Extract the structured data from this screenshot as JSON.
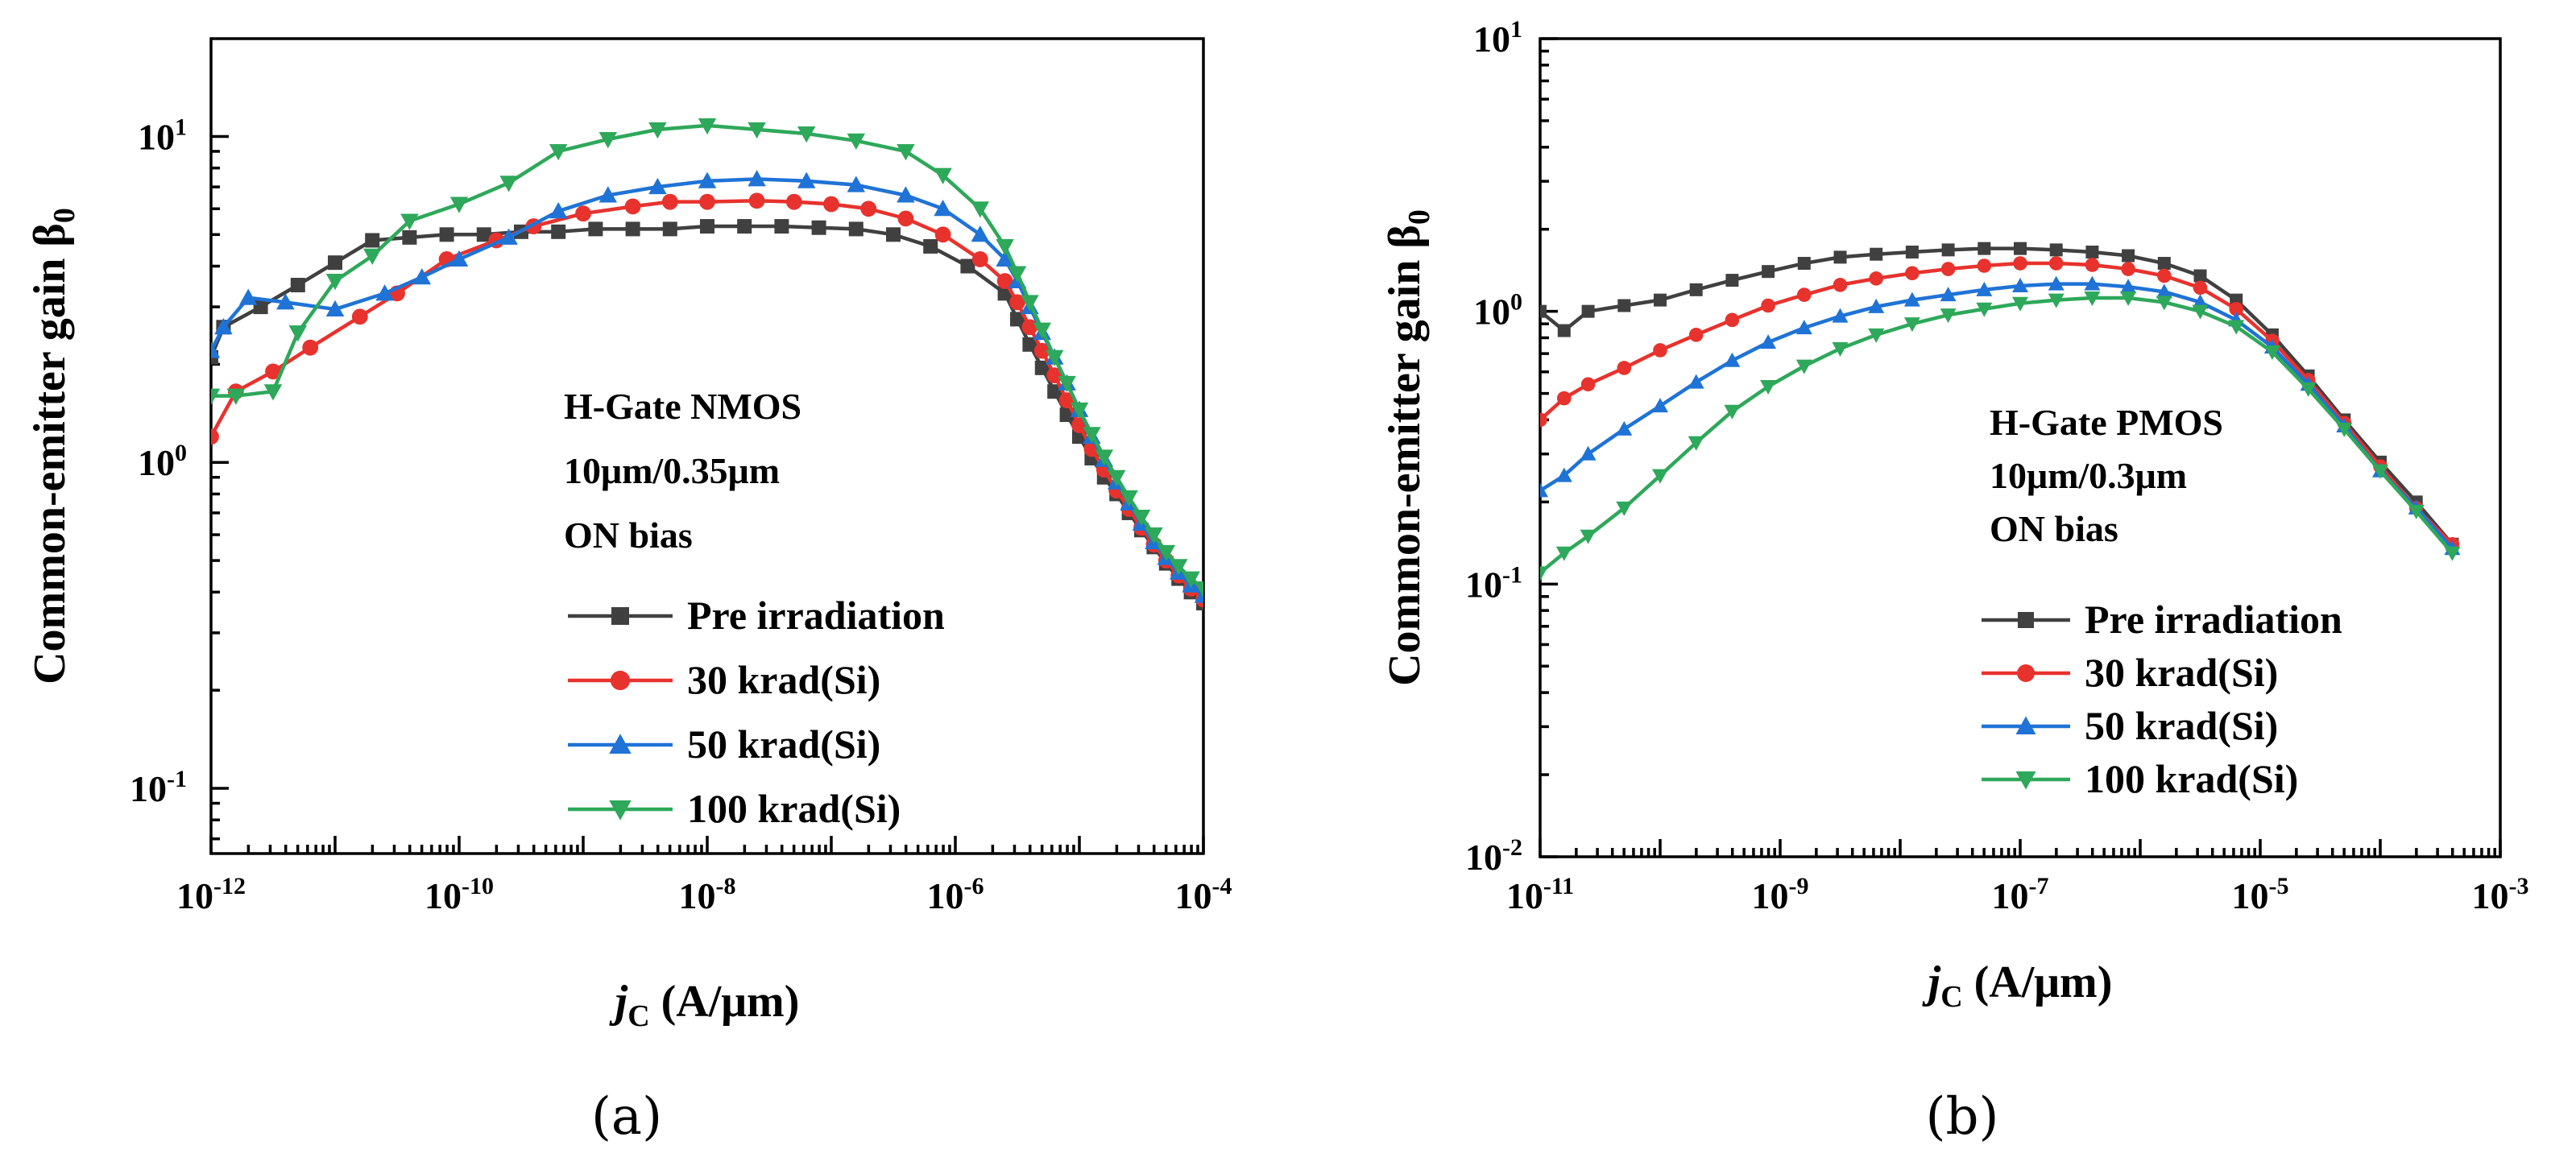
{
  "figure": {
    "panels": [
      {
        "label": "(a)",
        "annotation": [
          "H-Gate NMOS",
          "10μm/0.35μm",
          "ON bias"
        ],
        "legend": [
          "Pre irradiation",
          "30 krad(Si)",
          "50 krad(Si)",
          "100 krad(Si)"
        ]
      },
      {
        "label": "(b)",
        "annotation": [
          "H-Gate PMOS",
          "10μm/0.3μm",
          "ON bias"
        ],
        "legend": [
          "Pre irradiation",
          "30 krad(Si)",
          "50 krad(Si)",
          "100 krad(Si)"
        ]
      }
    ]
  },
  "chart_data": [
    {
      "type": "line",
      "title": "(a)",
      "xlabel": "jC (A/μm)",
      "xlabel_main": "j",
      "xlabel_sub": "C",
      "xlabel_unit": " (A/μm)",
      "ylabel": "Common-emitter gain β0",
      "ylabel_main": "Common-emitter gain β",
      "ylabel_sub": "0",
      "xscale": "log",
      "yscale": "log",
      "xlim_exp": [
        -12,
        -4
      ],
      "ylim_exp": [
        -1.2,
        1.3
      ],
      "xticks": [
        {
          "base": "10",
          "exp": "-12",
          "e": -12
        },
        {
          "base": "10",
          "exp": "-10",
          "e": -10
        },
        {
          "base": "10",
          "exp": "-8",
          "e": -8
        },
        {
          "base": "10",
          "exp": "-6",
          "e": -6
        },
        {
          "base": "10",
          "exp": "-4",
          "e": -4
        }
      ],
      "yticks": [
        {
          "base": "10",
          "exp": "-1",
          "e": -1
        },
        {
          "base": "10",
          "exp": "0",
          "e": 0
        },
        {
          "base": "10",
          "exp": "1",
          "e": 1
        }
      ],
      "legend_position": "lower-right",
      "series": [
        {
          "name": "Pre irradiation",
          "color": "#404040",
          "marker": "square",
          "x_exp": [
            -12,
            -11.9,
            -11.6,
            -11.3,
            -11.0,
            -10.7,
            -10.4,
            -10.1,
            -9.8,
            -9.5,
            -9.2,
            -8.9,
            -8.6,
            -8.3,
            -8.0,
            -7.7,
            -7.4,
            -7.1,
            -6.8,
            -6.5,
            -6.2,
            -5.9,
            -5.6,
            -5.5,
            -5.4,
            -5.3,
            -5.2,
            -5.1,
            -5.0,
            -4.9,
            -4.8,
            -4.7,
            -4.6,
            -4.5,
            -4.4,
            -4.3,
            -4.2,
            -4.1,
            -4.0
          ],
          "values": [
            2.1,
            2.6,
            3.0,
            3.5,
            4.1,
            4.8,
            4.9,
            5.0,
            5.0,
            5.1,
            5.1,
            5.2,
            5.2,
            5.2,
            5.3,
            5.3,
            5.3,
            5.25,
            5.2,
            5.0,
            4.6,
            4.0,
            3.3,
            2.75,
            2.3,
            1.95,
            1.65,
            1.4,
            1.2,
            1.03,
            0.9,
            0.8,
            0.7,
            0.62,
            0.55,
            0.49,
            0.44,
            0.4,
            0.37
          ]
        },
        {
          "name": "30 krad(Si)",
          "color": "#e8322d",
          "marker": "circle",
          "x_exp": [
            -12,
            -11.8,
            -11.5,
            -11.2,
            -10.8,
            -10.5,
            -10.1,
            -9.7,
            -9.4,
            -9.0,
            -8.6,
            -8.3,
            -8.0,
            -7.6,
            -7.3,
            -7.0,
            -6.7,
            -6.4,
            -6.1,
            -5.8,
            -5.6,
            -5.5,
            -5.4,
            -5.3,
            -5.2,
            -5.1,
            -5.0,
            -4.9,
            -4.8,
            -4.7,
            -4.6,
            -4.5,
            -4.4,
            -4.3,
            -4.2,
            -4.1,
            -4.0
          ],
          "values": [
            1.2,
            1.65,
            1.9,
            2.25,
            2.8,
            3.3,
            4.2,
            4.8,
            5.3,
            5.8,
            6.1,
            6.3,
            6.3,
            6.35,
            6.3,
            6.2,
            6.0,
            5.6,
            5.0,
            4.2,
            3.6,
            3.1,
            2.6,
            2.2,
            1.85,
            1.55,
            1.3,
            1.1,
            0.95,
            0.82,
            0.72,
            0.63,
            0.56,
            0.5,
            0.45,
            0.41,
            0.38
          ]
        },
        {
          "name": "50 krad(Si)",
          "color": "#1f73d6",
          "marker": "triangle-up",
          "x_exp": [
            -12,
            -11.9,
            -11.7,
            -11.4,
            -11.0,
            -10.6,
            -10.3,
            -10.0,
            -9.6,
            -9.2,
            -8.8,
            -8.4,
            -8.0,
            -7.6,
            -7.2,
            -6.8,
            -6.4,
            -6.1,
            -5.8,
            -5.6,
            -5.5,
            -5.4,
            -5.3,
            -5.2,
            -5.1,
            -5.0,
            -4.9,
            -4.8,
            -4.7,
            -4.6,
            -4.5,
            -4.4,
            -4.3,
            -4.2,
            -4.1,
            -4.0
          ],
          "values": [
            2.2,
            2.6,
            3.2,
            3.1,
            2.95,
            3.3,
            3.7,
            4.2,
            4.9,
            5.9,
            6.6,
            7.0,
            7.3,
            7.4,
            7.3,
            7.1,
            6.6,
            6.0,
            5.0,
            4.2,
            3.6,
            3.0,
            2.5,
            2.1,
            1.75,
            1.45,
            1.2,
            1.02,
            0.87,
            0.75,
            0.65,
            0.57,
            0.51,
            0.46,
            0.42,
            0.39
          ]
        },
        {
          "name": "100 krad(Si)",
          "color": "#2ea85a",
          "marker": "triangle-down",
          "x_exp": [
            -12,
            -11.8,
            -11.5,
            -11.3,
            -11.0,
            -10.7,
            -10.4,
            -10.0,
            -9.6,
            -9.2,
            -8.8,
            -8.4,
            -8.0,
            -7.6,
            -7.2,
            -6.8,
            -6.4,
            -6.1,
            -5.8,
            -5.6,
            -5.5,
            -5.4,
            -5.3,
            -5.2,
            -5.1,
            -5.0,
            -4.9,
            -4.8,
            -4.7,
            -4.6,
            -4.5,
            -4.4,
            -4.3,
            -4.2,
            -4.1,
            -4.0
          ],
          "values": [
            1.6,
            1.6,
            1.65,
            2.5,
            3.6,
            4.3,
            5.5,
            6.2,
            7.2,
            9.0,
            9.8,
            10.5,
            10.8,
            10.5,
            10.2,
            9.7,
            9.0,
            7.6,
            6.0,
            4.6,
            3.8,
            3.1,
            2.55,
            2.1,
            1.75,
            1.45,
            1.22,
            1.04,
            0.9,
            0.78,
            0.68,
            0.6,
            0.53,
            0.48,
            0.44,
            0.41
          ]
        }
      ]
    },
    {
      "type": "line",
      "title": "(b)",
      "xlabel": "jC (A/μm)",
      "xlabel_main": "j",
      "xlabel_sub": "C",
      "xlabel_unit": " (A/μm)",
      "ylabel": "Common-emitter gain β0",
      "ylabel_main": "Common-emitter gain β",
      "ylabel_sub": "0",
      "xscale": "log",
      "yscale": "log",
      "xlim_exp": [
        -11,
        -3
      ],
      "ylim_exp": [
        -2,
        1
      ],
      "xticks": [
        {
          "base": "10",
          "exp": "-11",
          "e": -11
        },
        {
          "base": "10",
          "exp": "-9",
          "e": -9
        },
        {
          "base": "10",
          "exp": "-7",
          "e": -7
        },
        {
          "base": "10",
          "exp": "-5",
          "e": -5
        },
        {
          "base": "10",
          "exp": "-3",
          "e": -3
        }
      ],
      "yticks": [
        {
          "base": "10",
          "exp": "-2",
          "e": -2
        },
        {
          "base": "10",
          "exp": "-1",
          "e": -1
        },
        {
          "base": "10",
          "exp": "0",
          "e": 0
        },
        {
          "base": "10",
          "exp": "1",
          "e": 1
        }
      ],
      "legend_position": "lower-center",
      "series": [
        {
          "name": "Pre irradiation",
          "color": "#404040",
          "marker": "square",
          "x_exp": [
            -11.0,
            -10.8,
            -10.6,
            -10.3,
            -10.0,
            -9.7,
            -9.4,
            -9.1,
            -8.8,
            -8.5,
            -8.2,
            -7.9,
            -7.6,
            -7.3,
            -7.0,
            -6.7,
            -6.4,
            -6.1,
            -5.8,
            -5.5,
            -5.2,
            -4.9,
            -4.6,
            -4.3,
            -4.0,
            -3.7,
            -3.4
          ],
          "values": [
            1.0,
            0.85,
            1.0,
            1.05,
            1.1,
            1.2,
            1.3,
            1.4,
            1.5,
            1.58,
            1.62,
            1.65,
            1.68,
            1.7,
            1.7,
            1.68,
            1.65,
            1.6,
            1.5,
            1.35,
            1.1,
            0.82,
            0.58,
            0.4,
            0.28,
            0.2,
            0.14
          ]
        },
        {
          "name": "30 krad(Si)",
          "color": "#e8322d",
          "marker": "circle",
          "x_exp": [
            -11.0,
            -10.8,
            -10.6,
            -10.3,
            -10.0,
            -9.7,
            -9.4,
            -9.1,
            -8.8,
            -8.5,
            -8.2,
            -7.9,
            -7.6,
            -7.3,
            -7.0,
            -6.7,
            -6.4,
            -6.1,
            -5.8,
            -5.5,
            -5.2,
            -4.9,
            -4.6,
            -4.3,
            -4.0,
            -3.7,
            -3.4
          ],
          "values": [
            0.4,
            0.48,
            0.54,
            0.62,
            0.72,
            0.82,
            0.93,
            1.05,
            1.15,
            1.25,
            1.32,
            1.38,
            1.43,
            1.47,
            1.5,
            1.5,
            1.48,
            1.43,
            1.35,
            1.22,
            1.02,
            0.78,
            0.56,
            0.39,
            0.27,
            0.19,
            0.14
          ]
        },
        {
          "name": "50 krad(Si)",
          "color": "#1f73d6",
          "marker": "triangle-up",
          "x_exp": [
            -11.0,
            -10.8,
            -10.6,
            -10.3,
            -10.0,
            -9.7,
            -9.4,
            -9.1,
            -8.8,
            -8.5,
            -8.2,
            -7.9,
            -7.6,
            -7.3,
            -7.0,
            -6.7,
            -6.4,
            -6.1,
            -5.8,
            -5.5,
            -5.2,
            -4.9,
            -4.6,
            -4.3,
            -4.0,
            -3.7,
            -3.4
          ],
          "values": [
            0.22,
            0.25,
            0.3,
            0.37,
            0.45,
            0.55,
            0.66,
            0.77,
            0.87,
            0.96,
            1.04,
            1.1,
            1.15,
            1.2,
            1.24,
            1.26,
            1.26,
            1.23,
            1.18,
            1.08,
            0.93,
            0.74,
            0.54,
            0.38,
            0.26,
            0.19,
            0.135
          ]
        },
        {
          "name": "100 krad(Si)",
          "color": "#2ea85a",
          "marker": "triangle-down",
          "x_exp": [
            -11.0,
            -10.8,
            -10.6,
            -10.3,
            -10.0,
            -9.7,
            -9.4,
            -9.1,
            -8.8,
            -8.5,
            -8.2,
            -7.9,
            -7.6,
            -7.3,
            -7.0,
            -6.7,
            -6.4,
            -6.1,
            -5.8,
            -5.5,
            -5.2,
            -4.9,
            -4.6,
            -4.3,
            -4.0,
            -3.7,
            -3.4
          ],
          "values": [
            0.11,
            0.13,
            0.15,
            0.19,
            0.25,
            0.33,
            0.43,
            0.53,
            0.63,
            0.73,
            0.82,
            0.9,
            0.97,
            1.02,
            1.07,
            1.1,
            1.12,
            1.12,
            1.08,
            1.0,
            0.88,
            0.71,
            0.52,
            0.37,
            0.26,
            0.185,
            0.13
          ]
        }
      ]
    }
  ]
}
